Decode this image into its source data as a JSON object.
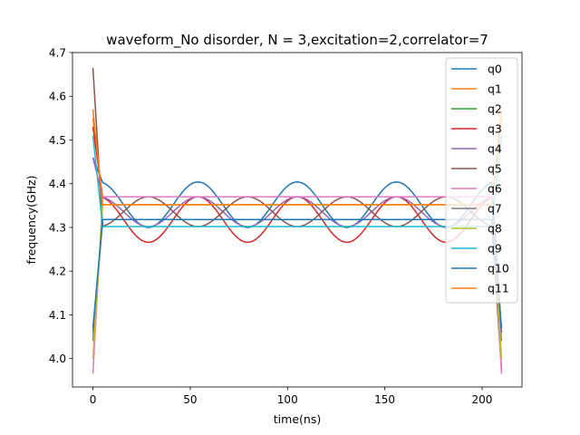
{
  "chart_data": {
    "type": "line",
    "title": "waveform_No disorder, N =  3,excitation=2,correlator=7",
    "xlabel": "time(ns)",
    "ylabel": "frequency(GHz)",
    "xlim": [
      -10.5,
      220.5
    ],
    "ylim": [
      3.935,
      4.7
    ],
    "xticks": [
      0,
      50,
      100,
      150,
      200
    ],
    "yticks": [
      4.0,
      4.1,
      4.2,
      4.3,
      4.4,
      4.5,
      4.6,
      4.7
    ],
    "xtick_labels": [
      "0",
      "50",
      "100",
      "150",
      "200"
    ],
    "ytick_labels": [
      "4.0",
      "4.1",
      "4.2",
      "4.3",
      "4.4",
      "4.5",
      "4.6",
      "4.7"
    ],
    "legend_position": "upper right",
    "grid": false,
    "ramp": {
      "start_time": 0,
      "end_time": 210,
      "ramp_duration": 5,
      "period": 51
    },
    "series": [
      {
        "name": "q0",
        "color": "#1f77b4",
        "start": 4.46,
        "end": 4.06,
        "center": 4.352,
        "amplitude": 0.052
      },
      {
        "name": "q1",
        "color": "#ff7f0e",
        "start": 4.55,
        "end": 4.55,
        "center": 4.352,
        "amplitude": 0.0
      },
      {
        "name": "q2",
        "color": "#2ca02c",
        "start": 4.06,
        "end": 4.06,
        "center": 4.318,
        "amplitude": 0.0
      },
      {
        "name": "q3",
        "color": "#d62728",
        "start": 4.53,
        "end": 4.06,
        "center": 4.318,
        "amplitude": 0.052
      },
      {
        "name": "q4",
        "color": "#9467bd",
        "start": 4.46,
        "end": 4.06,
        "center": 4.336,
        "amplitude": 0.034
      },
      {
        "name": "q5",
        "color": "#8c564b",
        "start": 4.665,
        "end": 3.975,
        "center": 4.336,
        "amplitude": -0.034
      },
      {
        "name": "q6",
        "color": "#e377c2",
        "start": 3.965,
        "end": 3.965,
        "center": 4.37,
        "amplitude": 0.0
      },
      {
        "name": "q7",
        "color": "#7f7f7f",
        "start": 4.04,
        "end": 4.04,
        "center": 4.318,
        "amplitude": 0.0
      },
      {
        "name": "q8",
        "color": "#bcbd22",
        "start": 4.0,
        "end": 4.0,
        "center": 4.352,
        "amplitude": 0.0
      },
      {
        "name": "q9",
        "color": "#17becf",
        "start": 4.51,
        "end": 4.51,
        "center": 4.302,
        "amplitude": 0.0
      },
      {
        "name": "q10",
        "color": "#1f77b4",
        "start": 4.07,
        "end": 4.07,
        "center": 4.318,
        "amplitude": 0.0
      },
      {
        "name": "q11",
        "color": "#ff7f0e",
        "start": 4.57,
        "end": 4.57,
        "center": 4.352,
        "amplitude": 0.0
      }
    ]
  }
}
